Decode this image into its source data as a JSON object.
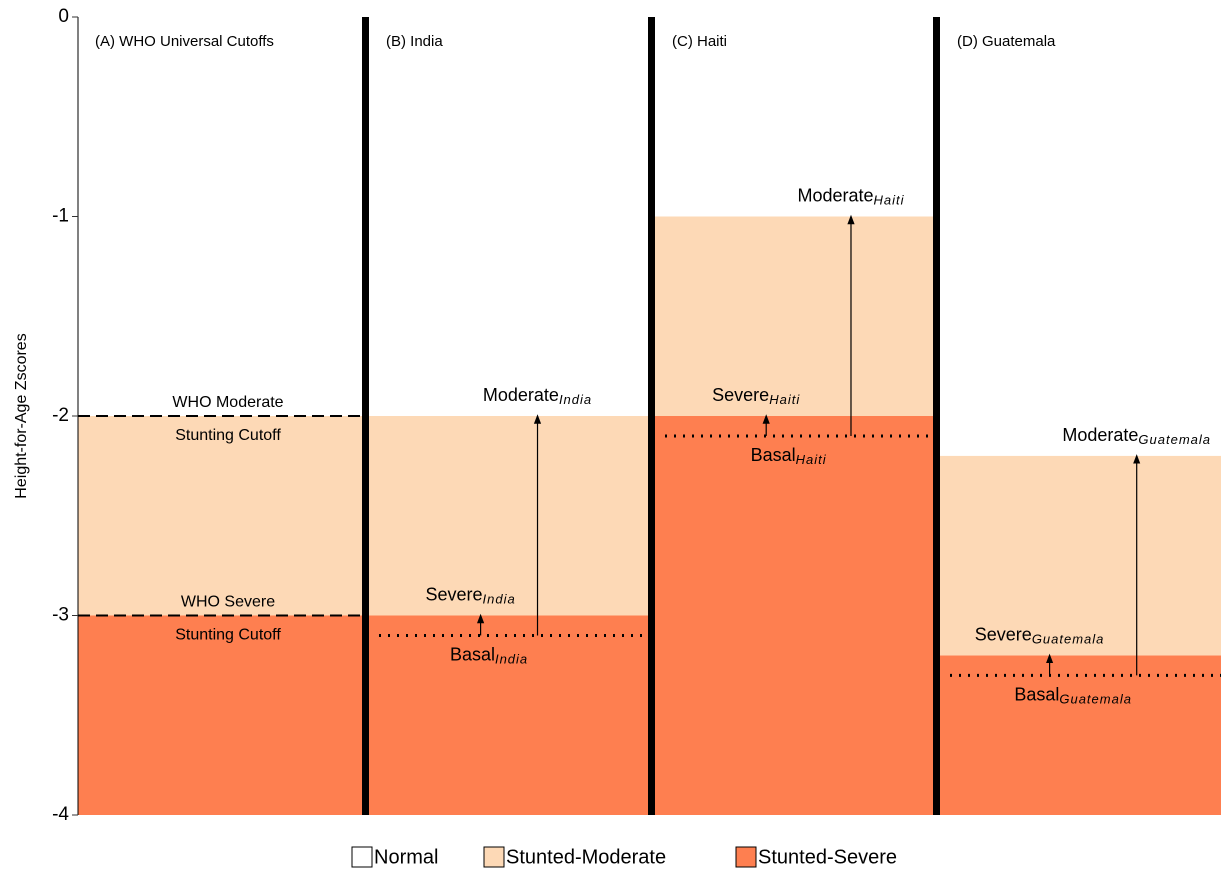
{
  "chart_data": {
    "type": "cutoff-panels",
    "ylabel": "Height-for-Age Zscores",
    "ylim": [
      -4,
      0
    ],
    "yticks": [
      0,
      -1,
      -2,
      -3,
      -4
    ],
    "legend": [
      {
        "name": "Normal",
        "color": "#ffffff"
      },
      {
        "name": "Stunted-Moderate",
        "color": "#fdd9b6"
      },
      {
        "name": "Stunted-Severe",
        "color": "#fe7f50"
      }
    ],
    "panels": [
      {
        "title": "(A) WHO Universal Cutoffs",
        "moderate": -2,
        "severe": -3,
        "labels": {
          "moderate": [
            "WHO Moderate",
            "Stunting Cutoff"
          ],
          "severe": [
            "WHO Severe",
            "Stunting Cutoff"
          ]
        }
      },
      {
        "title": "(B) India",
        "moderate": -2,
        "severe": -3,
        "basal": -3.1,
        "labels": {
          "moderate": [
            "Moderate",
            "India"
          ],
          "severe": [
            "Severe",
            "India"
          ],
          "basal": [
            "Basal",
            "India"
          ]
        }
      },
      {
        "title": "(C) Haiti",
        "moderate": -1,
        "severe": -2,
        "basal": -2.1,
        "labels": {
          "moderate": [
            "Moderate",
            "Haiti"
          ],
          "severe": [
            "Severe",
            "Haiti"
          ],
          "basal": [
            "Basal",
            "Haiti"
          ]
        }
      },
      {
        "title": "(D) Guatemala",
        "moderate": -2.2,
        "severe": -3.2,
        "basal": -3.3,
        "labels": {
          "moderate": [
            "Moderate",
            "Guatemala"
          ],
          "severe": [
            "Severe",
            "Guatemala"
          ],
          "basal": [
            "Basal",
            "Guatemala"
          ]
        }
      }
    ]
  }
}
